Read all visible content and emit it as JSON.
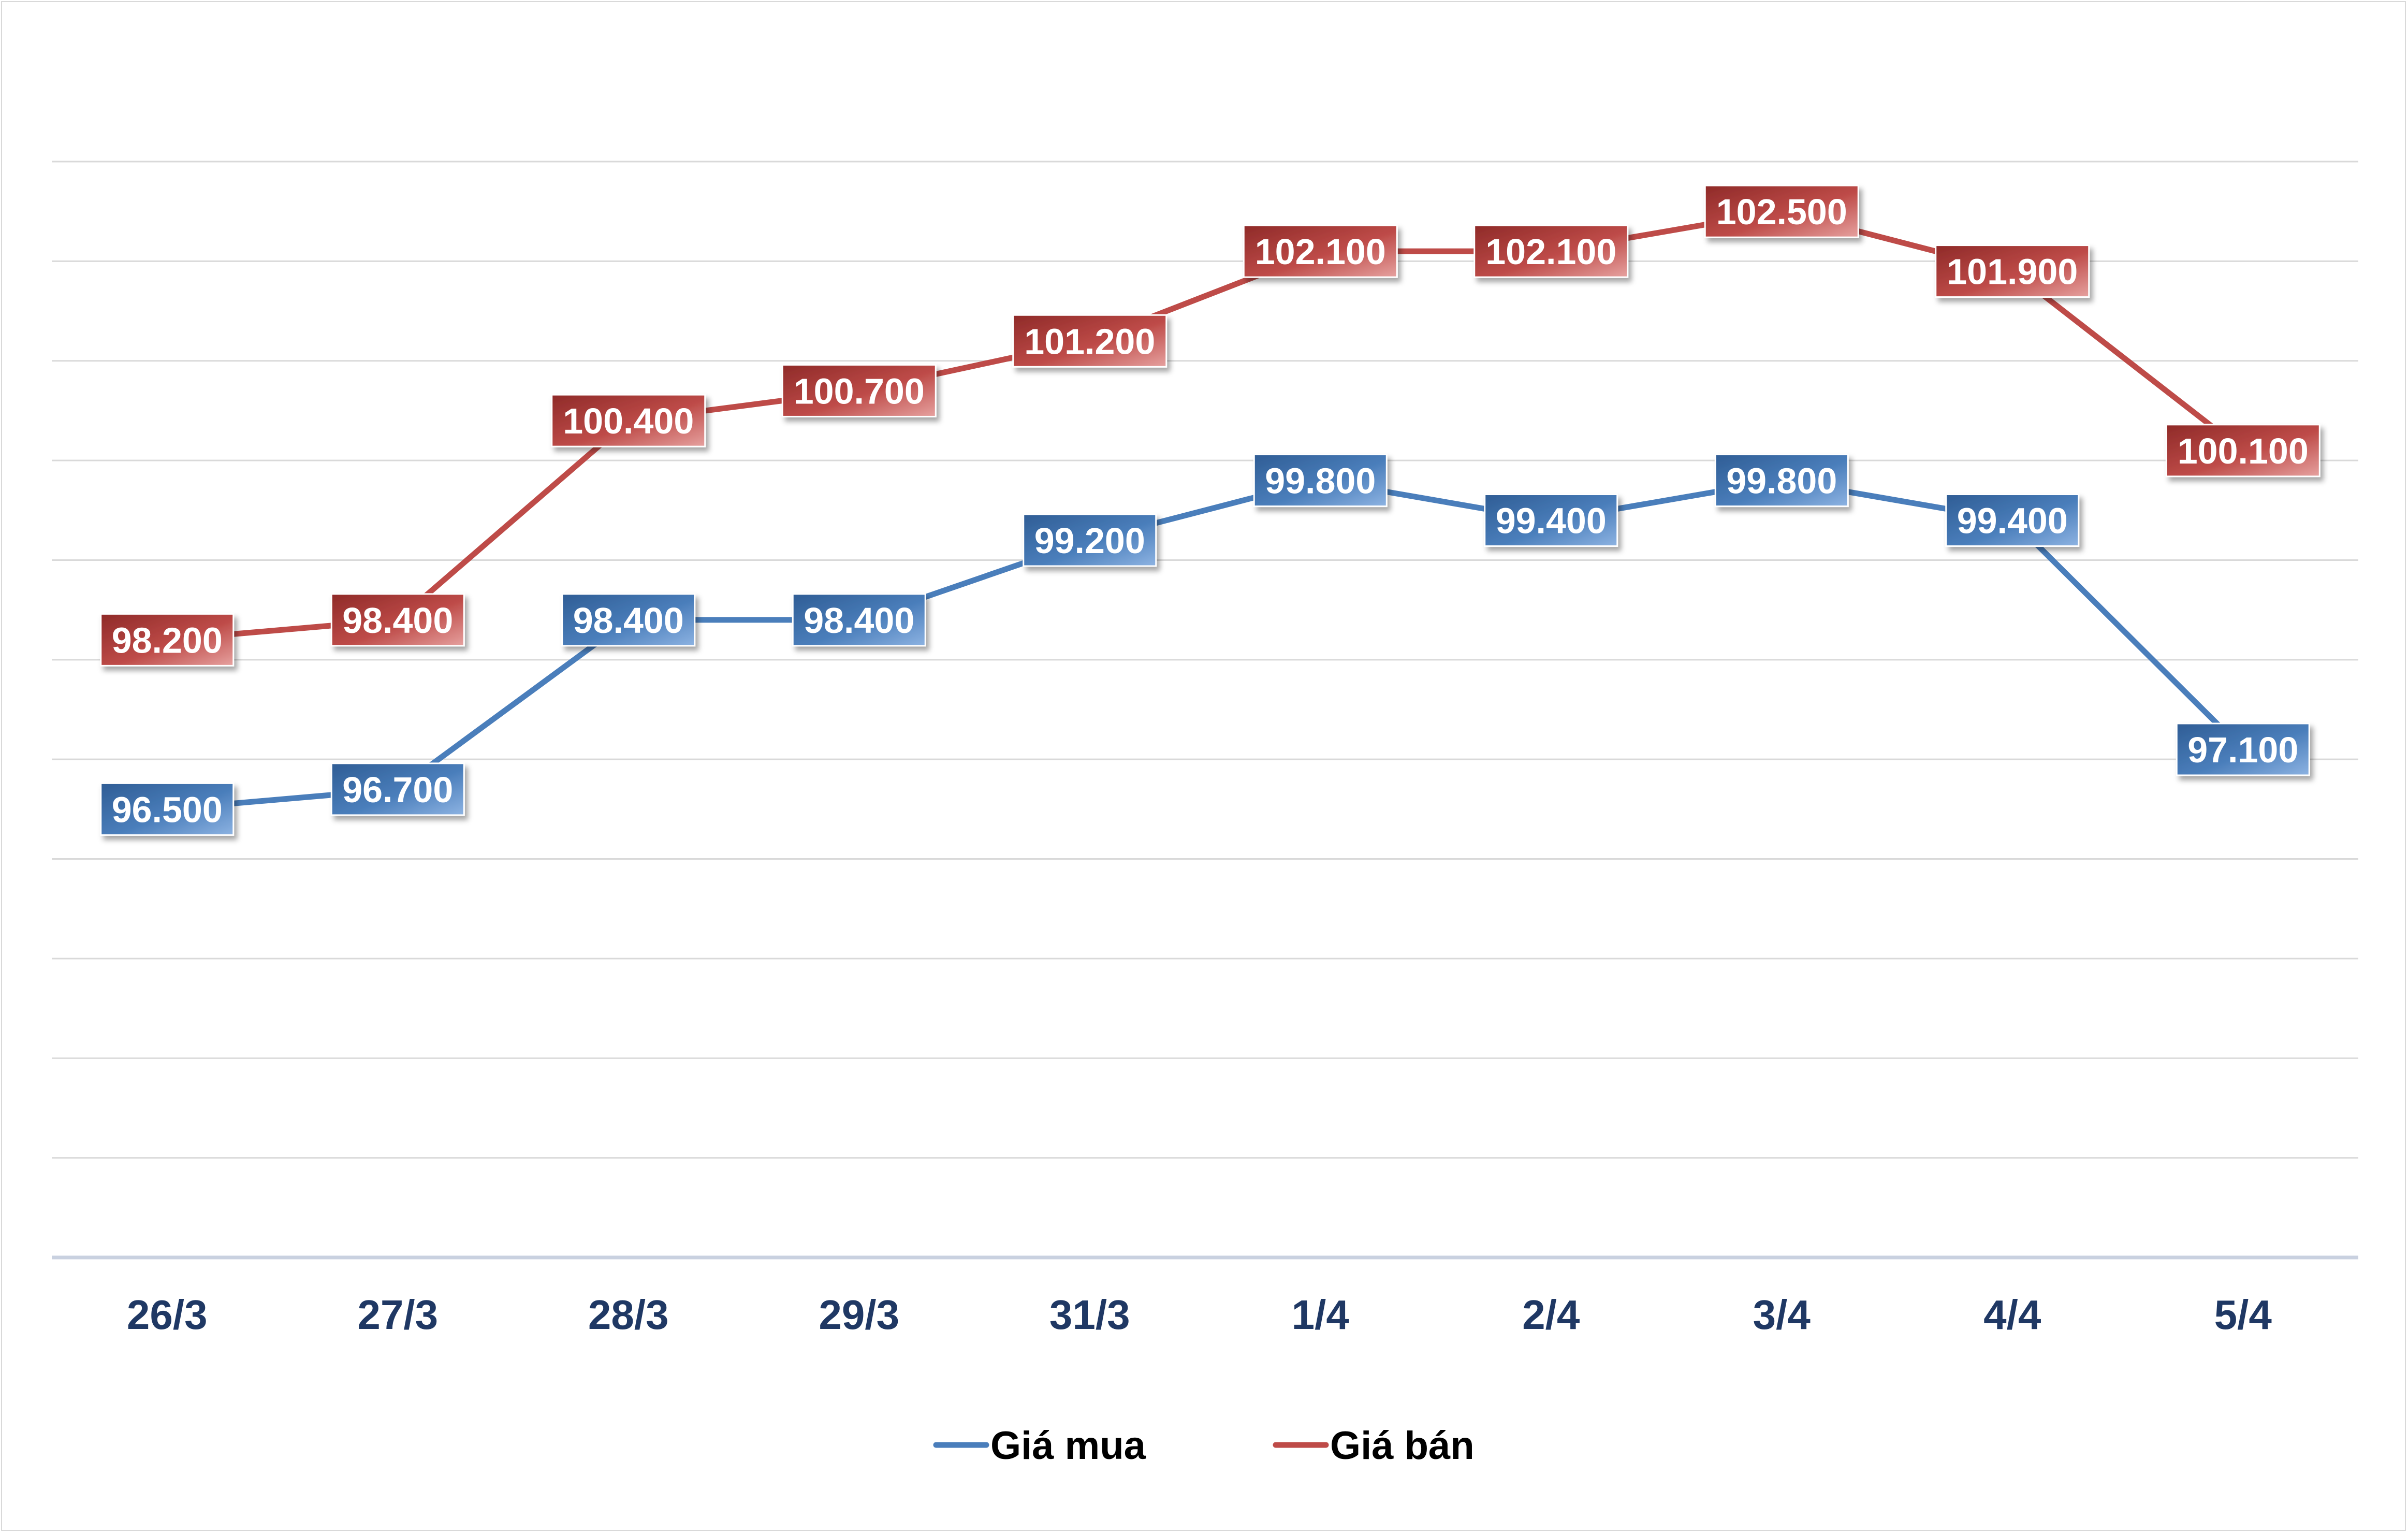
{
  "chart_data": {
    "type": "line",
    "categories": [
      "26/3",
      "27/3",
      "28/3",
      "29/3",
      "31/3",
      "1/4",
      "2/4",
      "3/4",
      "4/4",
      "5/4"
    ],
    "series": [
      {
        "name": "Giá mua",
        "color": "#4a7ebb",
        "values": [
          96.5,
          96.7,
          98.4,
          98.4,
          99.2,
          99.8,
          99.4,
          99.8,
          99.4,
          97.1
        ],
        "labels": [
          "96.500",
          "96.700",
          "98.400",
          "98.400",
          "99.200",
          "99.800",
          "99.400",
          "99.800",
          "99.400",
          "97.100"
        ]
      },
      {
        "name": "Giá bán",
        "color": "#be4b48",
        "values": [
          98.2,
          98.4,
          100.4,
          100.7,
          101.2,
          102.1,
          102.1,
          102.5,
          101.9,
          100.1
        ],
        "labels": [
          "98.200",
          "98.400",
          "100.400",
          "100.700",
          "101.200",
          "102.100",
          "102.100",
          "102.500",
          "101.900",
          "100.100"
        ]
      }
    ],
    "ylim": [
      92,
      103
    ],
    "grid": true,
    "legend": "bottom"
  }
}
